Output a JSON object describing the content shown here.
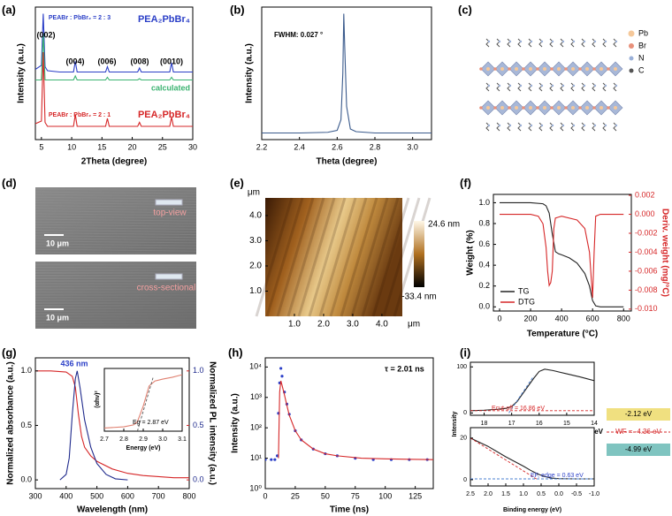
{
  "chart_data": [
    {
      "type": "line",
      "panel_label": "(a)",
      "xlabel": "2Theta (degree)",
      "ylabel": "Intensity (a.u.)",
      "xlim": [
        4,
        30
      ],
      "xticks": [
        5,
        10,
        15,
        20,
        25,
        30
      ],
      "ylim": [
        0,
        10
      ],
      "annotations": [
        "(002)",
        "(004)",
        "(006)",
        "(008)",
        "(0010)",
        "PEABr : PbBr₂ = 2 : 3",
        "PEA₂PbBr₄",
        "calculated",
        "PEABr : PbBr₂ = 2 : 1",
        "PEA₂PbBr₄"
      ],
      "series": [
        {
          "color": "#2b3fc7",
          "style": "line",
          "x": [
            4,
            5.0,
            5.3,
            5.6,
            6,
            8,
            10.3,
            10.6,
            10.9,
            13,
            15.6,
            15.9,
            16.2,
            18,
            20.9,
            21.2,
            21.5,
            24,
            26.2,
            26.5,
            26.8,
            28,
            30
          ],
          "values": [
            5.3,
            5.6,
            9.5,
            5.5,
            5.2,
            5.1,
            5.1,
            5.9,
            5.1,
            5.1,
            5.1,
            5.5,
            5.1,
            5.1,
            5.1,
            5.4,
            5.1,
            5.1,
            5.1,
            5.8,
            5.1,
            5.1,
            5.1
          ]
        },
        {
          "color": "#3cb371",
          "style": "line",
          "x": [
            4,
            5.0,
            5.3,
            5.6,
            6,
            8,
            10.3,
            10.6,
            10.9,
            13,
            15.6,
            15.9,
            16.2,
            18,
            20.9,
            21.2,
            21.5,
            24,
            26.2,
            26.5,
            26.8,
            28,
            30
          ],
          "values": [
            4.5,
            4.5,
            8.0,
            4.5,
            4.5,
            4.5,
            4.5,
            4.8,
            4.5,
            4.5,
            4.5,
            4.7,
            4.5,
            4.5,
            4.5,
            4.6,
            4.5,
            4.5,
            4.5,
            4.7,
            4.5,
            4.5,
            4.5
          ]
        },
        {
          "color": "#d62728",
          "style": "line",
          "x": [
            4,
            5.0,
            5.3,
            5.6,
            6,
            8,
            10.3,
            10.6,
            10.9,
            13,
            15.6,
            15.9,
            16.2,
            18,
            20.9,
            21.2,
            21.5,
            24,
            26.2,
            26.5,
            26.8,
            28,
            30
          ],
          "values": [
            1.2,
            1.4,
            6.6,
            1.3,
            1.0,
            1.0,
            1.0,
            1.9,
            1.0,
            1.0,
            1.0,
            1.6,
            1.0,
            1.0,
            1.0,
            1.3,
            1.0,
            1.0,
            1.0,
            1.7,
            1.0,
            1.0,
            1.0
          ]
        }
      ]
    },
    {
      "type": "line",
      "panel_label": "(b)",
      "xlabel": "Theta (degree)",
      "ylabel": "Intensity (a.u.)",
      "xlim": [
        2.2,
        3.1
      ],
      "xticks": [
        2.2,
        2.4,
        2.6,
        2.8,
        {
          "value": 3,
          "label": "3.0"
        }
      ],
      "ylim": [
        0,
        10
      ],
      "annotations": [
        "FWHM: 0.027 °"
      ],
      "series": [
        {
          "color": "#3a5a8c",
          "style": "line",
          "x": [
            2.2,
            2.4,
            2.55,
            2.6,
            2.62,
            2.63,
            2.635,
            2.64,
            2.65,
            2.67,
            2.7,
            2.8,
            3.0,
            3.1
          ],
          "values": [
            0.5,
            0.5,
            0.55,
            0.7,
            1.5,
            5,
            9.5,
            7,
            2.5,
            0.8,
            0.6,
            0.5,
            0.5,
            0.5
          ]
        }
      ]
    },
    {
      "type": "afm",
      "panel_label": "(e)",
      "x_unit": "μm",
      "y_unit": "μm",
      "colorbar_max": "24.6 nm",
      "colorbar_min": "-33.4 nm",
      "xlim": [
        0,
        4.7
      ],
      "ylim": [
        0,
        4.7
      ],
      "xticks": [
        {
          "value": 1,
          "label": "1.0"
        },
        {
          "value": 2,
          "label": "2.0"
        },
        {
          "value": 3,
          "label": "3.0"
        },
        {
          "value": 4,
          "label": "4.0"
        }
      ],
      "yticks": [
        {
          "value": 1,
          "label": "1.0"
        },
        {
          "value": 2,
          "label": "2.0"
        },
        {
          "value": 3,
          "label": "3.0"
        },
        {
          "value": 4,
          "label": "4.0"
        }
      ]
    },
    {
      "type": "line",
      "panel_label": "(f)",
      "xlabel": "Temperature (°C)",
      "ylabel": "Weight (%)",
      "y2label": "Deriv. weight (mg/°C)",
      "xlim": [
        -40,
        850
      ],
      "xticks": [
        0,
        200,
        400,
        600,
        800
      ],
      "ylim": [
        -0.04,
        1.08
      ],
      "yticks": [
        {
          "value": 0,
          "label": "0.0"
        },
        0.2,
        0.4,
        0.6,
        0.8,
        {
          "value": 1,
          "label": "1.0"
        }
      ],
      "y2lim": [
        -0.0102,
        0.0021
      ],
      "y2ticks": [
        0.002,
        {
          "value": 0,
          "label": "0.000"
        },
        -0.002,
        -0.004,
        -0.006,
        -0.008,
        {
          "value": -0.01,
          "label": "-0.010"
        }
      ],
      "legend": "lower left",
      "series": [
        {
          "name": "TG",
          "color": "#222222",
          "style": "line",
          "x": [
            0,
            100,
            200,
            280,
            300,
            320,
            340,
            360,
            380,
            400,
            450,
            500,
            550,
            580,
            600,
            620,
            650,
            700,
            800
          ],
          "values": [
            1.0,
            1.0,
            1.0,
            0.99,
            0.97,
            0.9,
            0.7,
            0.53,
            0.51,
            0.5,
            0.47,
            0.42,
            0.32,
            0.2,
            0.06,
            0.01,
            0.0,
            0.0,
            0.0
          ]
        },
        {
          "name": "DTG",
          "color": "#d62728",
          "style": "line",
          "axis": "y2",
          "x": [
            0,
            50,
            100,
            200,
            250,
            280,
            300,
            310,
            320,
            330,
            340,
            350,
            360,
            380,
            400,
            500,
            550,
            580,
            600,
            610,
            620,
            650,
            700,
            800
          ],
          "values": [
            0.0,
            0.0,
            0.0,
            0.0,
            -0.0002,
            -0.001,
            -0.0035,
            -0.006,
            -0.0075,
            -0.0072,
            -0.006,
            -0.0015,
            -0.0004,
            -0.0003,
            -0.0002,
            -0.0006,
            -0.0015,
            -0.004,
            -0.0088,
            -0.004,
            -0.0002,
            0.0,
            0.0,
            0.0
          ]
        }
      ]
    },
    {
      "type": "line",
      "panel_label": "(g)",
      "xlabel": "Wavelength (nm)",
      "ylabel": "Normalized absorbance (a.u.)",
      "y2label": "Normalized PL intensity (a.u.)",
      "xlim": [
        300,
        800
      ],
      "xticks": [
        300,
        400,
        500,
        600,
        700,
        800
      ],
      "ylim": [
        -0.08,
        1.12
      ],
      "yticks": [
        {
          "value": 0,
          "label": "0.0"
        },
        0.5,
        {
          "value": 1,
          "label": "1.0"
        }
      ],
      "y2lim": [
        -0.08,
        1.12
      ],
      "y2ticks": [
        {
          "value": 0,
          "label": "0.0"
        },
        0.5,
        {
          "value": 1,
          "label": "1.0"
        }
      ],
      "annotations": [
        "436 nm"
      ],
      "series": [
        {
          "color": "#d62728",
          "style": "line",
          "x": [
            300,
            350,
            400,
            420,
            430,
            440,
            450,
            460,
            480,
            500,
            550,
            600,
            650,
            700,
            750,
            800
          ],
          "values": [
            1.0,
            1.0,
            0.99,
            0.95,
            0.85,
            0.6,
            0.4,
            0.3,
            0.22,
            0.17,
            0.1,
            0.06,
            0.04,
            0.03,
            0.02,
            0.02
          ]
        },
        {
          "color": "#1f2a8c",
          "style": "line",
          "axis": "y2",
          "x": [
            380,
            400,
            410,
            420,
            430,
            436,
            445,
            460,
            480,
            500,
            530,
            560,
            600
          ],
          "values": [
            0.0,
            0.05,
            0.2,
            0.6,
            0.93,
            1.0,
            0.85,
            0.55,
            0.3,
            0.15,
            0.05,
            0.01,
            0.0
          ]
        }
      ]
    },
    {
      "type": "line",
      "xlabel": "Energy (eV)",
      "ylabel": "(αhν)²",
      "xlim": [
        2.7,
        3.1
      ],
      "xticks": [
        2.7,
        2.8,
        2.9,
        {
          "value": 3,
          "label": "3.0"
        },
        3.1
      ],
      "ylim": [
        0,
        1
      ],
      "annotations": [
        "Eg = 2.87 eV"
      ],
      "series": [
        {
          "color": "#e08070",
          "style": "line",
          "x": [
            2.7,
            2.8,
            2.85,
            2.87,
            2.9,
            2.93,
            2.96,
            3.0,
            3.05,
            3.1
          ],
          "values": [
            0.05,
            0.07,
            0.1,
            0.15,
            0.4,
            0.72,
            0.8,
            0.83,
            0.86,
            0.9
          ]
        },
        {
          "color": "#555555",
          "style": "dashed",
          "x": [
            2.87,
            2.95
          ],
          "values": [
            0.0,
            0.85
          ]
        }
      ]
    },
    {
      "type": "line",
      "panel_label": "(h)",
      "xlabel": "Time (ns)",
      "ylabel": "Intensity (a.u.)",
      "xlim": [
        0,
        140
      ],
      "xticks": [
        0,
        25,
        50,
        75,
        100,
        125
      ],
      "ylog": true,
      "ylim": [
        1,
        20000
      ],
      "yticks": [
        {
          "value": 1,
          "label": "10⁰"
        },
        {
          "value": 10,
          "label": "10¹"
        },
        {
          "value": 100,
          "label": "10²"
        },
        {
          "value": 1000,
          "label": "10³"
        },
        {
          "value": 10000,
          "label": "10⁴"
        }
      ],
      "annotations": [
        "τ = 2.01 ns"
      ],
      "series": [
        {
          "color": "#2b3fc7",
          "style": "scatter",
          "x": [
            0,
            5,
            8,
            10,
            11,
            12,
            13,
            14,
            16,
            18,
            20,
            25,
            30,
            40,
            50,
            60,
            75,
            90,
            105,
            120,
            135
          ],
          "values": [
            9,
            9,
            9,
            12,
            300,
            3000,
            9000,
            5000,
            1500,
            600,
            280,
            80,
            40,
            20,
            14,
            12,
            10,
            9,
            9,
            9,
            9
          ]
        },
        {
          "color": "#d62728",
          "style": "line",
          "x": [
            11,
            12,
            13,
            14,
            16,
            18,
            20,
            25,
            30,
            40,
            50,
            60,
            80,
            100,
            120,
            140
          ],
          "values": [
            10,
            1500,
            3500,
            2500,
            1200,
            550,
            260,
            80,
            40,
            20,
            14,
            12,
            10,
            9.5,
            9.2,
            9
          ]
        }
      ]
    },
    {
      "type": "line",
      "panel_label": "(i)",
      "ylabel": "Intensity",
      "xlim": [
        18.5,
        14
      ],
      "xticks": [
        18,
        17,
        16,
        15,
        14
      ],
      "ylim": [
        -5,
        110
      ],
      "yticks": [
        0,
        100
      ],
      "annotations": [
        "Ecut-off = 16.86 eV"
      ],
      "series": [
        {
          "color": "#222222",
          "style": "line",
          "x": [
            18.5,
            18,
            17.5,
            17.2,
            17,
            16.8,
            16.5,
            16.2,
            16,
            15.8,
            15.5,
            15,
            14.5,
            14
          ],
          "values": [
            5,
            6,
            8,
            10,
            14,
            25,
            50,
            75,
            90,
            95,
            92,
            85,
            78,
            70
          ]
        },
        {
          "color": "#4a7fd0",
          "style": "dashed",
          "x": [
            17.1,
            16.2
          ],
          "values": [
            0,
            80
          ]
        },
        {
          "color": "#d62728",
          "style": "dashed",
          "x": [
            18.5,
            14
          ],
          "values": [
            5,
            5
          ]
        }
      ]
    },
    {
      "type": "line",
      "xlabel": "Binding energy (eV)",
      "xlim": [
        2.5,
        -1.0
      ],
      "xticks": [
        2.5,
        {
          "value": 2,
          "label": "2.0"
        },
        1.5,
        {
          "value": 1,
          "label": "1.0"
        },
        0.5,
        {
          "value": 0,
          "label": "0.0"
        },
        -0.5,
        {
          "value": -1,
          "label": "-1.0"
        }
      ],
      "ylim": [
        -3,
        25
      ],
      "yticks": [
        0,
        20
      ],
      "annotations": [
        "EF, edge = 0.63 eV"
      ],
      "series": [
        {
          "color": "#222222",
          "style": "line",
          "x": [
            2.5,
            2.0,
            1.5,
            1.0,
            0.8,
            0.6,
            0.4,
            0.2,
            0,
            -0.5,
            -1.0
          ],
          "values": [
            20,
            16,
            11,
            6.5,
            4.5,
            2.8,
            1.5,
            0.8,
            0.5,
            0.4,
            0.4
          ]
        },
        {
          "color": "#d62728",
          "style": "dashed",
          "x": [
            2.5,
            0.6
          ],
          "values": [
            20,
            0
          ]
        },
        {
          "color": "#4a7fd0",
          "style": "dashed",
          "x": [
            2.5,
            -1.0
          ],
          "values": [
            0.4,
            0.4
          ]
        }
      ]
    }
  ],
  "images": [
    {
      "panel_label": "(c)",
      "legend": [
        "Pb",
        "Br",
        "N",
        "C"
      ]
    },
    {
      "panel_label": "(d)",
      "labels": [
        "top-view",
        "10 μm",
        "cross-sectional",
        "10 μm"
      ]
    }
  ],
  "energy_diagram": {
    "labels": [
      "-2.12 eV",
      "WF = -4.36 eV",
      "-4.99 eV",
      "2.87 eV"
    ]
  }
}
